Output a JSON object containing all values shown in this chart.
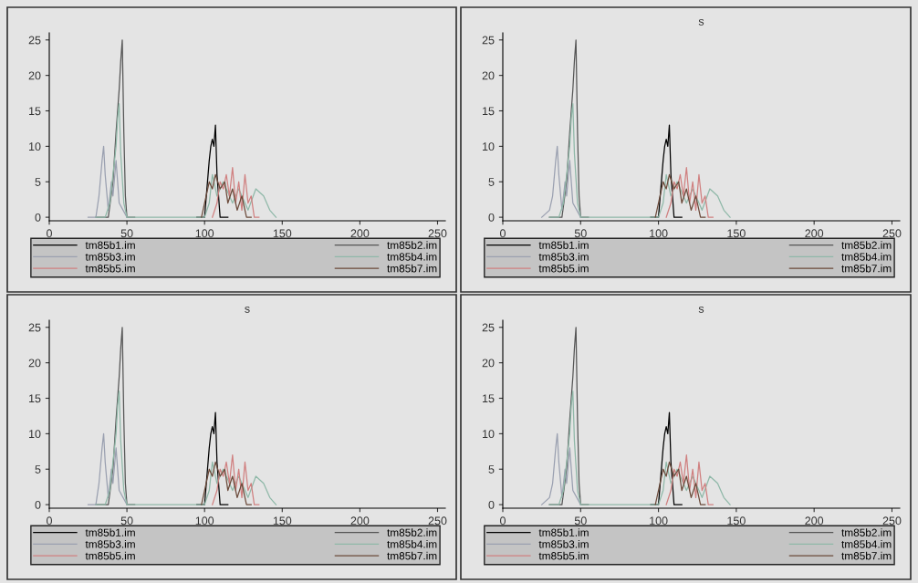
{
  "chart_data": [
    {
      "type": "line",
      "xlim": [
        0,
        255
      ],
      "ylim": [
        -0.5,
        26
      ],
      "xticks": [
        0,
        50,
        100,
        150,
        200,
        250
      ],
      "yticks": [
        0,
        5,
        10,
        15,
        20,
        25
      ],
      "legend": "bottom",
      "grid": false,
      "series": [
        {
          "name": "tm85b1.im",
          "color": "#000000",
          "x": [
            95,
            100,
            103,
            104,
            105,
            106,
            107,
            108,
            110,
            115
          ],
          "values": [
            0,
            0,
            8,
            10,
            11,
            10,
            13,
            6,
            0,
            0
          ]
        },
        {
          "name": "tm85b2.im",
          "color": "#555555",
          "x": [
            30,
            38,
            41,
            43,
            44,
            45,
            46,
            47,
            48,
            49,
            50,
            55
          ],
          "values": [
            0,
            0,
            5,
            12,
            15,
            18,
            22,
            25,
            12,
            3,
            0,
            0
          ]
        },
        {
          "name": "tm85b3.im",
          "color": "#9aa0b0",
          "x": [
            25,
            30,
            32,
            34,
            35,
            36,
            38,
            40,
            41,
            43,
            45,
            50
          ],
          "values": [
            0,
            0,
            3,
            8,
            10,
            6,
            1,
            5,
            3,
            8,
            2,
            0
          ]
        },
        {
          "name": "tm85b4.im",
          "color": "#8fb8a8",
          "x": [
            30,
            36,
            39,
            41,
            43,
            44,
            45,
            46,
            48,
            50,
            100,
            103,
            105,
            108,
            112,
            118,
            122,
            128,
            133,
            138,
            142,
            146
          ],
          "values": [
            0,
            0,
            2,
            6,
            10,
            14,
            16,
            9,
            2,
            0,
            0,
            2,
            6,
            3,
            5,
            2,
            4,
            1,
            4,
            3,
            1,
            0
          ]
        },
        {
          "name": "tm85b5.im",
          "color": "#d08080",
          "x": [
            105,
            108,
            110,
            112,
            114,
            116,
            118,
            120,
            122,
            124,
            126,
            128,
            130,
            132,
            135
          ],
          "values": [
            0,
            2,
            5,
            4,
            6,
            3,
            7,
            2,
            5,
            1,
            6,
            2,
            3,
            0,
            0
          ]
        },
        {
          "name": "tm85b7.im",
          "color": "#6b4a3a",
          "x": [
            98,
            101,
            103,
            105,
            107,
            110,
            113,
            115,
            118,
            121,
            124,
            127,
            130
          ],
          "values": [
            0,
            3,
            5,
            4,
            6,
            4,
            5,
            2,
            4,
            1,
            3,
            0,
            0
          ]
        }
      ]
    },
    {
      "type": "line",
      "title": "s",
      "xlim": [
        0,
        255
      ],
      "ylim": [
        -0.5,
        26
      ],
      "xticks": [
        0,
        50,
        100,
        150,
        200,
        250
      ],
      "yticks": [
        0,
        5,
        10,
        15,
        20,
        25
      ],
      "legend": "bottom",
      "grid": false,
      "series": [
        {
          "name": "tm85b1.im",
          "color": "#000000",
          "x": [
            95,
            100,
            103,
            104,
            105,
            106,
            107,
            108,
            110,
            115
          ],
          "values": [
            0,
            0,
            8,
            10,
            11,
            10,
            13,
            6,
            0,
            0
          ]
        },
        {
          "name": "tm85b2.im",
          "color": "#555555",
          "x": [
            30,
            38,
            41,
            43,
            44,
            45,
            46,
            47,
            48,
            49,
            50,
            55
          ],
          "values": [
            0,
            0,
            5,
            12,
            15,
            18,
            22,
            25,
            12,
            3,
            0,
            0
          ]
        },
        {
          "name": "tm85b3.im",
          "color": "#9aa0b0",
          "x": [
            25,
            30,
            32,
            34,
            35,
            36,
            38,
            40,
            41,
            43,
            45,
            50
          ],
          "values": [
            0,
            1,
            3,
            8,
            10,
            6,
            1,
            5,
            3,
            8,
            2,
            0
          ]
        },
        {
          "name": "tm85b4.im",
          "color": "#8fb8a8",
          "x": [
            30,
            36,
            39,
            41,
            43,
            44,
            45,
            46,
            48,
            50,
            100,
            103,
            105,
            108,
            112,
            118,
            122,
            128,
            133,
            138,
            142,
            146
          ],
          "values": [
            0,
            0,
            2,
            6,
            10,
            14,
            16,
            9,
            2,
            0,
            0,
            2,
            6,
            3,
            5,
            2,
            4,
            1,
            4,
            3,
            1,
            0
          ]
        },
        {
          "name": "tm85b5.im",
          "color": "#d08080",
          "x": [
            105,
            108,
            110,
            112,
            114,
            116,
            118,
            120,
            122,
            124,
            126,
            128,
            130,
            132,
            135
          ],
          "values": [
            0,
            2,
            5,
            4,
            6,
            3,
            7,
            2,
            5,
            1,
            6,
            2,
            3,
            0,
            0
          ]
        },
        {
          "name": "tm85b7.im",
          "color": "#6b4a3a",
          "x": [
            98,
            101,
            103,
            105,
            107,
            110,
            113,
            115,
            118,
            121,
            124,
            127,
            130
          ],
          "values": [
            0,
            3,
            5,
            4,
            6,
            4,
            5,
            2,
            4,
            1,
            3,
            0,
            0
          ]
        }
      ]
    },
    {
      "type": "line",
      "title": "s",
      "xlim": [
        0,
        255
      ],
      "ylim": [
        -0.5,
        26
      ],
      "xticks": [
        0,
        50,
        100,
        150,
        200,
        250
      ],
      "yticks": [
        0,
        5,
        10,
        15,
        20,
        25
      ],
      "legend": "bottom",
      "grid": false,
      "series": [
        {
          "name": "tm85b1.im",
          "color": "#000000",
          "x": [
            95,
            100,
            103,
            104,
            105,
            106,
            107,
            108,
            110,
            115
          ],
          "values": [
            0,
            0,
            8,
            10,
            11,
            10,
            13,
            6,
            0,
            0
          ]
        },
        {
          "name": "tm85b2.im",
          "color": "#555555",
          "x": [
            30,
            38,
            41,
            43,
            44,
            45,
            46,
            47,
            48,
            49,
            50,
            55
          ],
          "values": [
            0,
            0,
            5,
            12,
            15,
            18,
            22,
            25,
            12,
            3,
            0,
            0
          ]
        },
        {
          "name": "tm85b3.im",
          "color": "#9aa0b0",
          "x": [
            25,
            30,
            32,
            34,
            35,
            36,
            38,
            40,
            41,
            43,
            45,
            50
          ],
          "values": [
            0,
            0,
            3,
            8,
            10,
            6,
            1,
            5,
            3,
            8,
            2,
            0
          ]
        },
        {
          "name": "tm85b4.im",
          "color": "#8fb8a8",
          "x": [
            30,
            36,
            39,
            41,
            43,
            44,
            45,
            46,
            48,
            50,
            100,
            103,
            105,
            108,
            112,
            118,
            122,
            128,
            133,
            138,
            142,
            146
          ],
          "values": [
            0,
            0,
            2,
            6,
            10,
            14,
            16,
            9,
            2,
            0,
            0,
            2,
            6,
            3,
            5,
            2,
            4,
            1,
            4,
            3,
            1,
            0
          ]
        },
        {
          "name": "tm85b5.im",
          "color": "#d08080",
          "x": [
            105,
            108,
            110,
            112,
            114,
            116,
            118,
            120,
            122,
            124,
            126,
            128,
            130,
            132,
            135
          ],
          "values": [
            0,
            2,
            5,
            4,
            6,
            3,
            7,
            2,
            5,
            1,
            6,
            2,
            3,
            0,
            0
          ]
        },
        {
          "name": "tm85b7.im",
          "color": "#6b4a3a",
          "x": [
            98,
            101,
            103,
            105,
            107,
            110,
            113,
            115,
            118,
            121,
            124,
            127,
            130
          ],
          "values": [
            0,
            3,
            5,
            4,
            6,
            4,
            5,
            2,
            4,
            1,
            3,
            0,
            0
          ]
        }
      ]
    },
    {
      "type": "line",
      "title": "s",
      "xlim": [
        0,
        255
      ],
      "ylim": [
        -0.5,
        26
      ],
      "xticks": [
        0,
        50,
        100,
        150,
        200,
        250
      ],
      "yticks": [
        0,
        5,
        10,
        15,
        20,
        25
      ],
      "legend": "bottom",
      "grid": false,
      "series": [
        {
          "name": "tm85b1.im",
          "color": "#000000",
          "x": [
            95,
            100,
            103,
            104,
            105,
            106,
            107,
            108,
            110,
            115
          ],
          "values": [
            0,
            0,
            8,
            10,
            11,
            10,
            13,
            6,
            0,
            0
          ]
        },
        {
          "name": "tm85b2.im",
          "color": "#555555",
          "x": [
            30,
            38,
            41,
            43,
            44,
            45,
            46,
            47,
            48,
            49,
            50,
            55
          ],
          "values": [
            0,
            0,
            5,
            12,
            15,
            18,
            22,
            25,
            12,
            3,
            0,
            0
          ]
        },
        {
          "name": "tm85b3.im",
          "color": "#9aa0b0",
          "x": [
            25,
            30,
            32,
            34,
            35,
            36,
            38,
            40,
            41,
            43,
            45,
            50
          ],
          "values": [
            0,
            1,
            3,
            8,
            10,
            6,
            1,
            5,
            3,
            8,
            2,
            0
          ]
        },
        {
          "name": "tm85b4.im",
          "color": "#8fb8a8",
          "x": [
            30,
            36,
            39,
            41,
            43,
            44,
            45,
            46,
            48,
            50,
            100,
            103,
            105,
            108,
            112,
            118,
            122,
            128,
            133,
            138,
            142,
            146
          ],
          "values": [
            0,
            0,
            2,
            6,
            10,
            14,
            16,
            9,
            2,
            0,
            0,
            2,
            6,
            3,
            5,
            2,
            4,
            1,
            4,
            3,
            1,
            0
          ]
        },
        {
          "name": "tm85b5.im",
          "color": "#d08080",
          "x": [
            105,
            108,
            110,
            112,
            114,
            116,
            118,
            120,
            122,
            124,
            126,
            128,
            130,
            132,
            135
          ],
          "values": [
            0,
            2,
            5,
            4,
            6,
            3,
            7,
            2,
            5,
            1,
            6,
            2,
            3,
            0,
            0
          ]
        },
        {
          "name": "tm85b7.im",
          "color": "#6b4a3a",
          "x": [
            98,
            101,
            103,
            105,
            107,
            110,
            113,
            115,
            118,
            121,
            124,
            127,
            130
          ],
          "values": [
            0,
            3,
            5,
            4,
            6,
            4,
            5,
            2,
            4,
            1,
            3,
            0,
            0
          ]
        }
      ]
    }
  ]
}
